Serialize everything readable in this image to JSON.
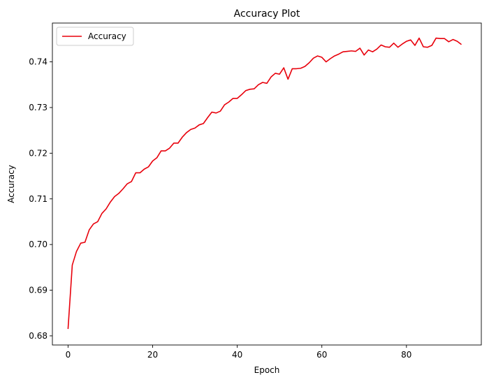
{
  "chart_data": {
    "type": "line",
    "title": "Accuracy Plot",
    "xlabel": "Epoch",
    "ylabel": "Accuracy",
    "xlim": [
      -3.7,
      97.7
    ],
    "ylim": [
      0.678,
      0.7485
    ],
    "xticks": [
      0,
      20,
      40,
      60,
      80
    ],
    "yticks": [
      0.68,
      0.69,
      0.7,
      0.71,
      0.72,
      0.73,
      0.74
    ],
    "ytick_labels": [
      "0.68",
      "0.69",
      "0.70",
      "0.71",
      "0.72",
      "0.73",
      "0.74"
    ],
    "grid": false,
    "legend": {
      "position": "upper-left",
      "entries": [
        "Accuracy"
      ]
    },
    "series": [
      {
        "name": "Accuracy",
        "color": "#e8000b",
        "x": [
          0,
          1,
          2,
          3,
          4,
          5,
          6,
          7,
          8,
          9,
          10,
          11,
          12,
          13,
          14,
          15,
          16,
          17,
          18,
          19,
          20,
          21,
          22,
          23,
          24,
          25,
          26,
          27,
          28,
          29,
          30,
          31,
          32,
          33,
          34,
          35,
          36,
          37,
          38,
          39,
          40,
          41,
          42,
          43,
          44,
          45,
          46,
          47,
          48,
          49,
          50,
          51,
          52,
          53,
          54,
          55,
          56,
          57,
          58,
          59,
          60,
          61,
          62,
          63,
          64,
          65,
          66,
          67,
          68,
          69,
          70,
          71,
          72,
          73,
          74,
          75,
          76,
          77,
          78,
          79,
          80,
          81,
          82,
          83,
          84,
          85,
          86,
          87,
          88,
          89,
          90,
          91,
          92,
          93
        ],
        "values": [
          0.6815,
          0.6955,
          0.6985,
          0.7003,
          0.7005,
          0.7032,
          0.7045,
          0.705,
          0.7068,
          0.7078,
          0.7093,
          0.7105,
          0.7112,
          0.7122,
          0.7133,
          0.7138,
          0.7157,
          0.7157,
          0.7165,
          0.717,
          0.7183,
          0.719,
          0.7205,
          0.7205,
          0.7211,
          0.7222,
          0.7222,
          0.7235,
          0.7245,
          0.7252,
          0.7255,
          0.7262,
          0.7265,
          0.7278,
          0.729,
          0.7288,
          0.7292,
          0.7306,
          0.7312,
          0.732,
          0.732,
          0.7328,
          0.7337,
          0.734,
          0.7341,
          0.735,
          0.7355,
          0.7353,
          0.7367,
          0.7375,
          0.7373,
          0.7387,
          0.7362,
          0.7385,
          0.7385,
          0.7386,
          0.739,
          0.7398,
          0.7408,
          0.7413,
          0.741,
          0.74,
          0.7407,
          0.7413,
          0.7417,
          0.7422,
          0.7423,
          0.7424,
          0.7423,
          0.743,
          0.7415,
          0.7426,
          0.7422,
          0.7428,
          0.7437,
          0.7433,
          0.7432,
          0.7441,
          0.7432,
          0.7439,
          0.7445,
          0.7448,
          0.7436,
          0.7452,
          0.7433,
          0.7432,
          0.7436,
          0.7452,
          0.7451,
          0.7451,
          0.7444,
          0.7449,
          0.7445,
          0.7438
        ]
      }
    ]
  }
}
